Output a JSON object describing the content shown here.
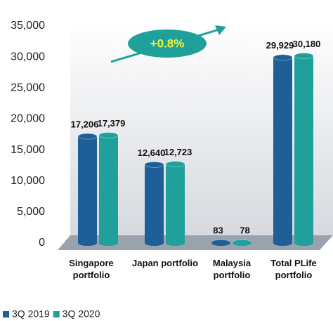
{
  "chart_data": {
    "type": "bar",
    "categories": [
      "Singapore portfolio",
      "Japan portfolio",
      "Malaysia portfolio",
      "Total PLife portfolio"
    ],
    "series": [
      {
        "name": "3Q 2019",
        "color": "#1f5f98",
        "values": [
          17206,
          12640,
          83,
          29929
        ],
        "value_labels": [
          "17,206",
          "12,640",
          "83",
          "29,929"
        ]
      },
      {
        "name": "3Q 2020",
        "color": "#1fa09a",
        "values": [
          17379,
          12723,
          78,
          30180
        ],
        "value_labels": [
          "17,379",
          "12,723",
          "78",
          "30,180"
        ]
      }
    ],
    "ylim": [
      0,
      35000
    ],
    "yticks": [
      0,
      {
        "value": 5000,
        "label": "5,000"
      },
      {
        "value": 10000,
        "label": "10,000"
      },
      {
        "value": 15000,
        "label": "15,000"
      },
      {
        "value": 20000,
        "label": "20,000"
      },
      {
        "value": 25000,
        "label": "25,000"
      },
      {
        "value": 30000,
        "label": "30,000"
      },
      {
        "value": 35000,
        "label": "35,000"
      }
    ],
    "annotation": "+0.8%",
    "legend": "bottom-left"
  }
}
